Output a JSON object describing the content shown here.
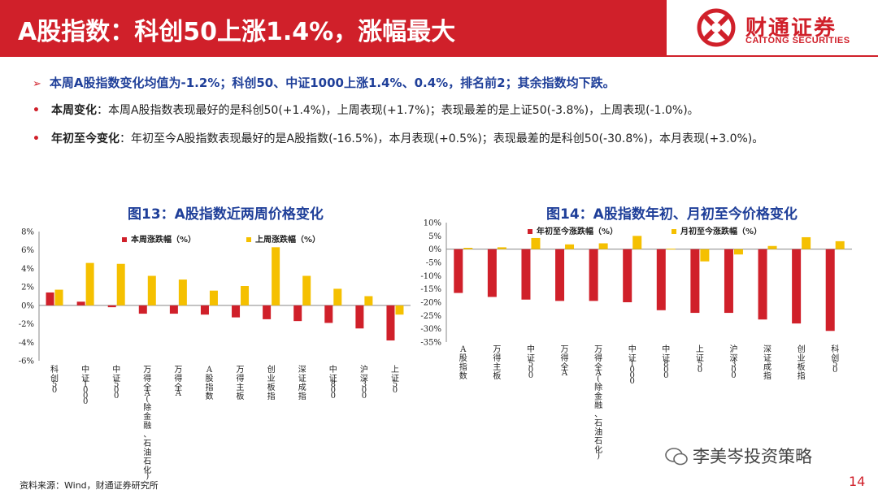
{
  "header": {
    "title": "A股指数：科创50上涨1.4%，涨幅最大",
    "logo_cn": "财通证券",
    "logo_en": "CAITONG SECURITIES",
    "accent": "#d0202a"
  },
  "summary": {
    "arrow": "➢",
    "text": "本周A股指数变化均值为-1.2%；科创50、中证1000上涨1.4%、0.4%，排名前2；其余指数均下跌。"
  },
  "bullets": [
    {
      "dot": "•",
      "label": "本周变化",
      "text": "：本周A股指数表现最好的是科创50(+1.4%)，上周表现(+1.7%)；表现最差的是上证50(-3.8%)，上周表现(-1.0%)。"
    },
    {
      "dot": "•",
      "label": "年初至今变化",
      "text": "：年初至今A股指数表现最好的是A股指数(-16.5%)，本月表现(+0.5%)；表现最差的是科创50(-30.8%)，本月表现(+3.0%)。"
    }
  ],
  "chart_data": [
    {
      "type": "bar",
      "title": "图13：A股指数近两周价格变化",
      "categories": [
        "科创50",
        "中证1000",
        "中证500",
        "万得全A(除金融、石油石化)",
        "万得全A",
        "A股指数",
        "万得主板",
        "创业板指",
        "深证成指",
        "中证800",
        "沪深300",
        "上证50"
      ],
      "series": [
        {
          "name": "本周涨跌幅（%）",
          "color": "#d0202a",
          "values": [
            1.4,
            0.4,
            -0.2,
            -0.9,
            -0.9,
            -1.0,
            -1.3,
            -1.5,
            -1.7,
            -1.9,
            -2.5,
            -3.8
          ]
        },
        {
          "name": "上周涨跌幅（%）",
          "color": "#f5c000",
          "values": [
            1.7,
            4.6,
            4.5,
            3.2,
            2.8,
            1.6,
            2.1,
            6.3,
            3.2,
            1.8,
            1.0,
            -1.0
          ]
        }
      ],
      "ylim": [
        -6,
        8
      ],
      "yticks": [
        "8%",
        "6%",
        "4%",
        "2%",
        "0%",
        "-2%",
        "-4%",
        "-6%"
      ],
      "legend": "top"
    },
    {
      "type": "bar",
      "title": "图14：A股指数年初、月初至今价格变化",
      "categories": [
        "A股指数",
        "万得主板",
        "中证500",
        "万得全A",
        "万得全A(除金融、石油石化)",
        "中证1000",
        "中证800",
        "上证50",
        "沪深300",
        "深证成指",
        "创业板指",
        "科创50"
      ],
      "series": [
        {
          "name": "年初至今涨跌幅（%）",
          "color": "#d0202a",
          "values": [
            -16.5,
            -18.0,
            -19.0,
            -19.5,
            -19.5,
            -20.0,
            -23.0,
            -24.0,
            -24.0,
            -26.5,
            -28.0,
            -30.8
          ]
        },
        {
          "name": "月初至今涨跌幅（%）",
          "color": "#f5c000",
          "values": [
            0.5,
            0.7,
            4.2,
            1.8,
            2.2,
            5.0,
            0.2,
            -4.6,
            -2.0,
            1.2,
            4.5,
            3.0
          ]
        }
      ],
      "ylim": [
        -35,
        10
      ],
      "yticks": [
        "10%",
        "5%",
        "0%",
        "-5%",
        "-10%",
        "-15%",
        "-20%",
        "-25%",
        "-30%",
        "-35%"
      ],
      "legend": "top"
    }
  ],
  "footer": {
    "source": "资料来源：Wind，财通证券研究所",
    "wechat": "李美岑投资策略",
    "page": "14"
  }
}
